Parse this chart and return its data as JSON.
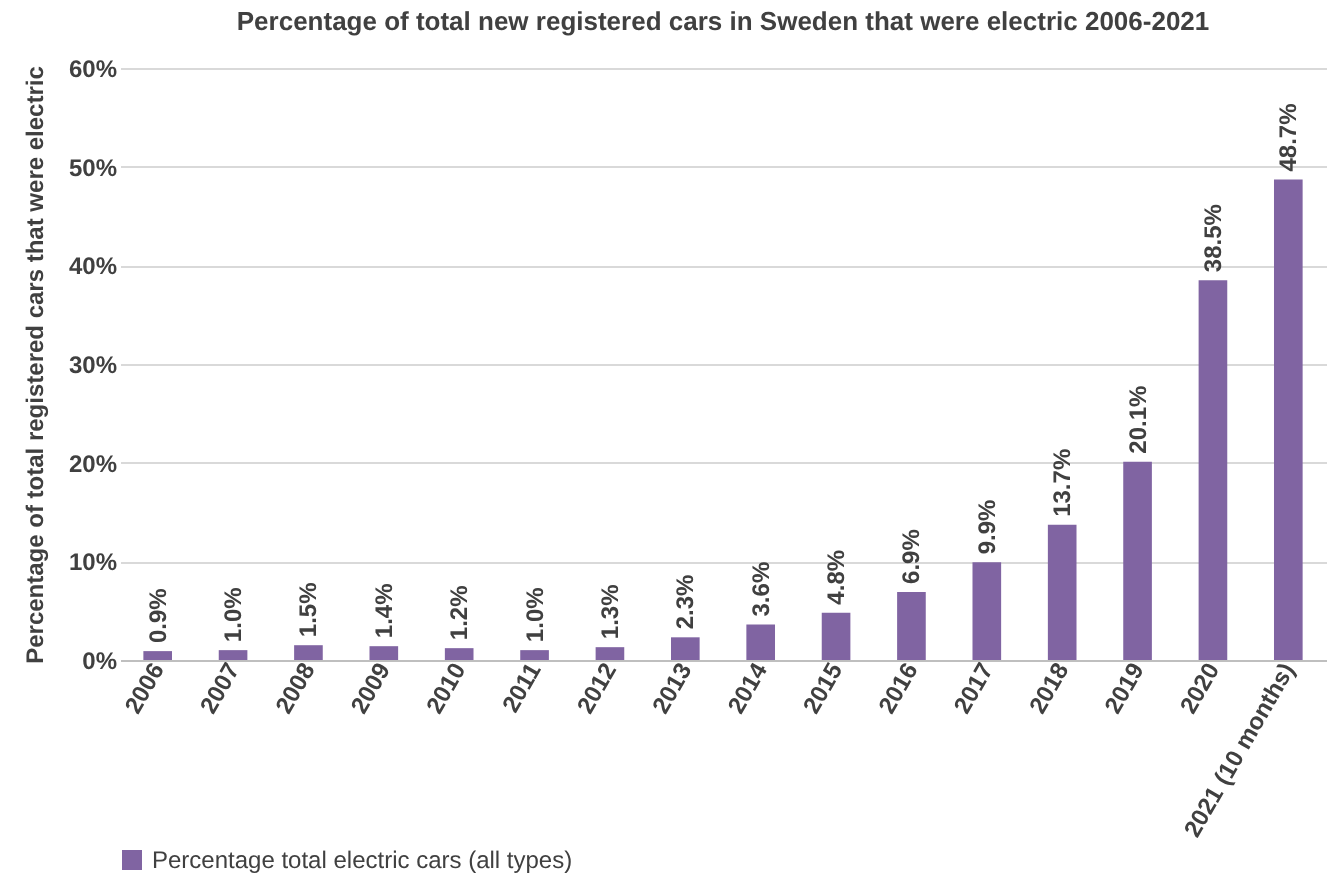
{
  "chart_data": {
    "type": "bar",
    "title": "Percentage of total new registered cars in Sweden that were electric 2006-2021",
    "ylabel": "Percentage of total registered cars that were electric",
    "categories": [
      "2006",
      "2007",
      "2008",
      "2009",
      "2010",
      "2011",
      "2012",
      "2013",
      "2014",
      "2015",
      "2016",
      "2017",
      "2018",
      "2019",
      "2020",
      "2021 (10 months)"
    ],
    "series": [
      {
        "name": "Percentage total electric cars (all types)",
        "color": "#8064a2",
        "values": [
          0.9,
          1.0,
          1.5,
          1.4,
          1.2,
          1.0,
          1.3,
          2.3,
          3.6,
          4.8,
          6.9,
          9.9,
          13.7,
          20.1,
          38.5,
          48.7
        ],
        "value_labels": [
          "0.9%",
          "1.0%",
          "1.5%",
          "1.4%",
          "1.2%",
          "1.0%",
          "1.3%",
          "2.3%",
          "3.6%",
          "4.8%",
          "6.9%",
          "9.9%",
          "13.7%",
          "20.1%",
          "38.5%",
          "48.7%"
        ]
      }
    ],
    "ylim": [
      0,
      60
    ],
    "yticks": [
      {
        "value": 0,
        "label": "0%"
      },
      {
        "value": 10,
        "label": "10%"
      },
      {
        "value": 20,
        "label": "20%"
      },
      {
        "value": 30,
        "label": "30%"
      },
      {
        "value": 40,
        "label": "40%"
      },
      {
        "value": 50,
        "label": "50%"
      },
      {
        "value": 60,
        "label": "60%"
      }
    ],
    "grid": "y",
    "legend": "bottom"
  }
}
